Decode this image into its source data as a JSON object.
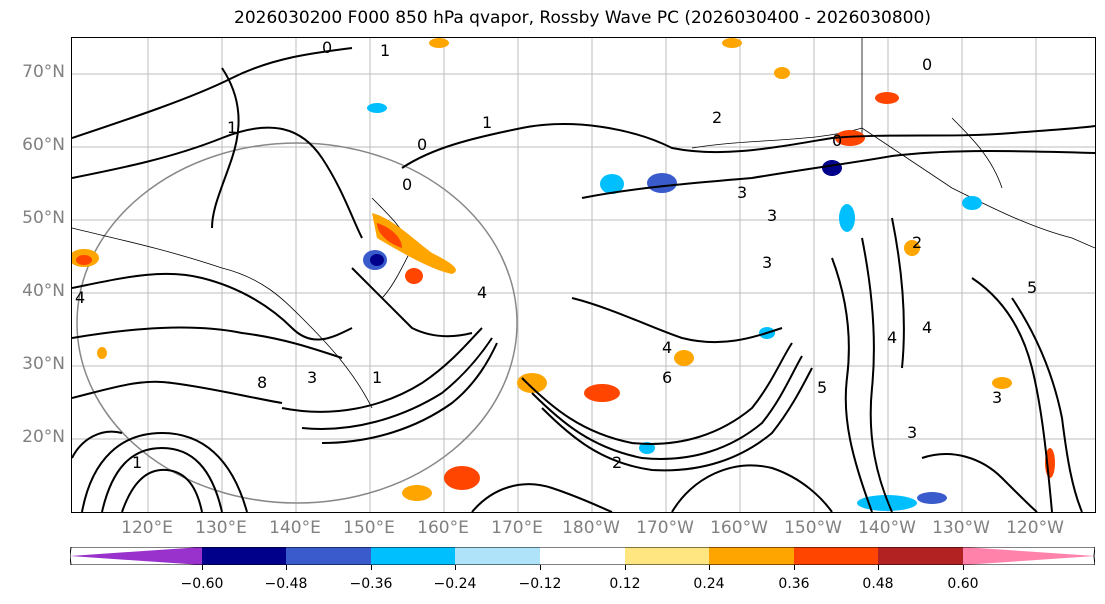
{
  "title": "2026030200 F000 850 hPa qvapor, Rossby Wave PC (2026030400 - 2026030800)",
  "lat_labels": [
    "70°N",
    "60°N",
    "50°N",
    "40°N",
    "30°N",
    "20°N"
  ],
  "lon_labels": [
    "120°E",
    "130°E",
    "140°E",
    "150°E",
    "160°E",
    "170°E",
    "180°W",
    "170°W",
    "160°W",
    "150°W",
    "140°W",
    "130°W",
    "120°W"
  ],
  "contour_labels": [
    "0",
    "1",
    "0",
    "1",
    "0",
    "0",
    "1",
    "2",
    "0",
    "3",
    "3",
    "2",
    "3",
    "4",
    "4",
    "4",
    "1",
    "3",
    "6",
    "5",
    "3",
    "4",
    "8",
    "1",
    "2",
    "3",
    "4",
    "5"
  ],
  "colorbar": {
    "ticks": [
      "−0.60",
      "−0.48",
      "−0.36",
      "−0.24",
      "−0.12",
      "0.12",
      "0.24",
      "0.36",
      "0.48",
      "0.60"
    ],
    "colors": [
      "#9932cc",
      "#00008b",
      "#3a5bcc",
      "#00bfff",
      "#aee3fa",
      "#ffffff",
      "#ffe680",
      "#ffa500",
      "#ff4500",
      "#b22222",
      "#ff82ab"
    ]
  },
  "shading_colors": {
    "orange": "#ffa500",
    "red": "#ff4500",
    "light_blue": "#00bfff",
    "dark_blue": "#00008b"
  }
}
